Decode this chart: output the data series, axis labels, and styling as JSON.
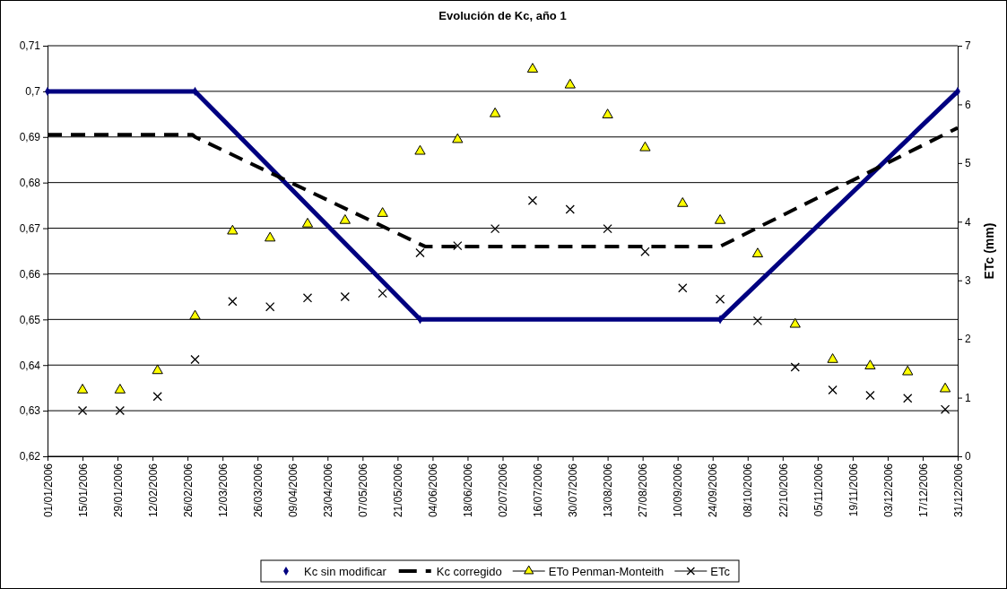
{
  "chart_data": {
    "type": "line",
    "title": "Evolución de Kc, año 1",
    "y2label": "ETc (mm)",
    "xlim": [
      "2006-01-01",
      "2006-12-31"
    ],
    "xticks": [
      {
        "value": "2006-01-01",
        "label": "01/01/2006"
      },
      {
        "value": "2006-01-15",
        "label": "15/01/2006"
      },
      {
        "value": "2006-01-29",
        "label": "29/01/2006"
      },
      {
        "value": "2006-02-12",
        "label": "12/02/2006"
      },
      {
        "value": "2006-02-26",
        "label": "26/02/2006"
      },
      {
        "value": "2006-03-12",
        "label": "12/03/2006"
      },
      {
        "value": "2006-03-26",
        "label": "26/03/2006"
      },
      {
        "value": "2006-04-09",
        "label": "09/04/2006"
      },
      {
        "value": "2006-04-23",
        "label": "23/04/2006"
      },
      {
        "value": "2006-05-07",
        "label": "07/05/2006"
      },
      {
        "value": "2006-05-21",
        "label": "21/05/2006"
      },
      {
        "value": "2006-06-04",
        "label": "04/06/2006"
      },
      {
        "value": "2006-06-18",
        "label": "18/06/2006"
      },
      {
        "value": "2006-07-02",
        "label": "02/07/2006"
      },
      {
        "value": "2006-07-16",
        "label": "16/07/2006"
      },
      {
        "value": "2006-07-30",
        "label": "30/07/2006"
      },
      {
        "value": "2006-08-13",
        "label": "13/08/2006"
      },
      {
        "value": "2006-08-27",
        "label": "27/08/2006"
      },
      {
        "value": "2006-09-10",
        "label": "10/09/2006"
      },
      {
        "value": "2006-09-24",
        "label": "24/09/2006"
      },
      {
        "value": "2006-10-08",
        "label": "08/10/2006"
      },
      {
        "value": "2006-10-22",
        "label": "22/10/2006"
      },
      {
        "value": "2006-11-05",
        "label": "05/11/2006"
      },
      {
        "value": "2006-11-19",
        "label": "19/11/2006"
      },
      {
        "value": "2006-12-03",
        "label": "03/12/2006"
      },
      {
        "value": "2006-12-17",
        "label": "17/12/2006"
      },
      {
        "value": "2006-12-31",
        "label": "31/12/2006"
      }
    ],
    "ylim": [
      0.62,
      0.71
    ],
    "yticks": [
      {
        "value": 0.62,
        "label": "0,62"
      },
      {
        "value": 0.63,
        "label": "0,63"
      },
      {
        "value": 0.64,
        "label": "0,64"
      },
      {
        "value": 0.65,
        "label": "0,65"
      },
      {
        "value": 0.66,
        "label": "0,66"
      },
      {
        "value": 0.67,
        "label": "0,67"
      },
      {
        "value": 0.68,
        "label": "0,68"
      },
      {
        "value": 0.69,
        "label": "0,69"
      },
      {
        "value": 0.7,
        "label": "0,7"
      },
      {
        "value": 0.71,
        "label": "0,71"
      }
    ],
    "y2lim": [
      0,
      7
    ],
    "y2ticks": [
      0,
      1,
      2,
      3,
      4,
      5,
      6,
      7
    ],
    "grid": "y",
    "legend": "bottom",
    "series": [
      {
        "name": "Kc sin modificar",
        "marker": "diamond",
        "color": "#000080",
        "x": [
          "2006-01-01",
          "2006-03-01",
          "2006-05-30",
          "2006-09-27",
          "2006-12-31"
        ],
        "values": [
          0.7,
          0.7,
          0.65,
          0.65,
          0.7
        ]
      },
      {
        "name": "Kc corregido",
        "line_style": "dashed",
        "color": "#000000",
        "x": [
          "2006-01-01",
          "2006-02-28",
          "2006-03-01",
          "2006-05-30",
          "2006-06-01",
          "2006-09-27",
          "2006-12-31"
        ],
        "values": [
          0.6905,
          0.6905,
          0.69,
          0.6665,
          0.666,
          0.666,
          0.692
        ]
      },
      {
        "name": "ETo Penman-Monteith",
        "type": "scatter",
        "marker": "triangle",
        "axis": "y2",
        "color": "#ffff00",
        "x": [
          "2006-01-15",
          "2006-01-30",
          "2006-02-14",
          "2006-03-01",
          "2006-03-16",
          "2006-03-31",
          "2006-04-15",
          "2006-04-30",
          "2006-05-15",
          "2006-05-30",
          "2006-06-14",
          "2006-06-29",
          "2006-07-14",
          "2006-07-29",
          "2006-08-13",
          "2006-08-28",
          "2006-09-12",
          "2006-09-27",
          "2006-10-12",
          "2006-10-27",
          "2006-11-11",
          "2006-11-26",
          "2006-12-11",
          "2006-12-26"
        ],
        "values": [
          1.13,
          1.13,
          1.46,
          2.39,
          3.84,
          3.72,
          3.96,
          4.02,
          4.14,
          5.2,
          5.4,
          5.84,
          6.6,
          6.33,
          5.82,
          5.26,
          4.31,
          4.02,
          3.45,
          2.25,
          1.65,
          1.54,
          1.44,
          1.15
        ]
      },
      {
        "name": "ETc",
        "type": "scatter",
        "marker": "cross",
        "axis": "y2",
        "color": "#000000",
        "x": [
          "2006-01-15",
          "2006-01-30",
          "2006-02-14",
          "2006-03-01",
          "2006-03-16",
          "2006-03-31",
          "2006-04-15",
          "2006-04-30",
          "2006-05-15",
          "2006-05-30",
          "2006-06-14",
          "2006-06-29",
          "2006-07-14",
          "2006-07-29",
          "2006-08-13",
          "2006-08-28",
          "2006-09-12",
          "2006-09-27",
          "2006-10-12",
          "2006-10-27",
          "2006-11-11",
          "2006-11-26",
          "2006-12-11",
          "2006-12-26"
        ],
        "values": [
          0.78,
          0.78,
          1.02,
          1.65,
          2.64,
          2.55,
          2.7,
          2.72,
          2.78,
          3.47,
          3.59,
          3.88,
          4.36,
          4.21,
          3.88,
          3.49,
          2.87,
          2.68,
          2.31,
          1.52,
          1.13,
          1.04,
          0.99,
          0.8
        ]
      }
    ]
  }
}
